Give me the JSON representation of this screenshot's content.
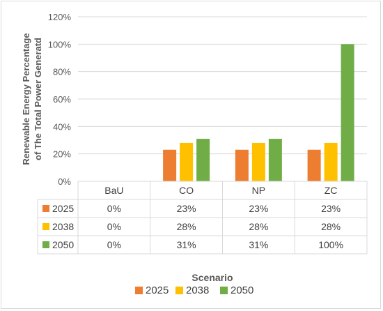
{
  "chart_data": {
    "type": "bar",
    "ylabel_line1": "Renewable Energy Percentage",
    "ylabel_line2": "of The Total Power Generatd",
    "xlabel": "Scenario",
    "categories": [
      "BaU",
      "CO",
      "NP",
      "ZC"
    ],
    "ylim": [
      0,
      120
    ],
    "yticks": [
      0,
      20,
      40,
      60,
      80,
      100,
      120
    ],
    "ytick_labels": [
      "0%",
      "20%",
      "40%",
      "60%",
      "80%",
      "100%",
      "120%"
    ],
    "grid": true,
    "legend_position": "bottom",
    "series": [
      {
        "name": "2025",
        "color": "#ed7d31",
        "values": [
          0,
          23,
          23,
          23
        ],
        "labels": [
          "0%",
          "23%",
          "23%",
          "23%"
        ]
      },
      {
        "name": "2038",
        "color": "#ffc000",
        "values": [
          0,
          28,
          28,
          28
        ],
        "labels": [
          "0%",
          "28%",
          "28%",
          "28%"
        ]
      },
      {
        "name": "2050",
        "color": "#70ad47",
        "values": [
          0,
          31,
          31,
          100
        ],
        "labels": [
          "0%",
          "31%",
          "31%",
          "100%"
        ]
      }
    ]
  }
}
